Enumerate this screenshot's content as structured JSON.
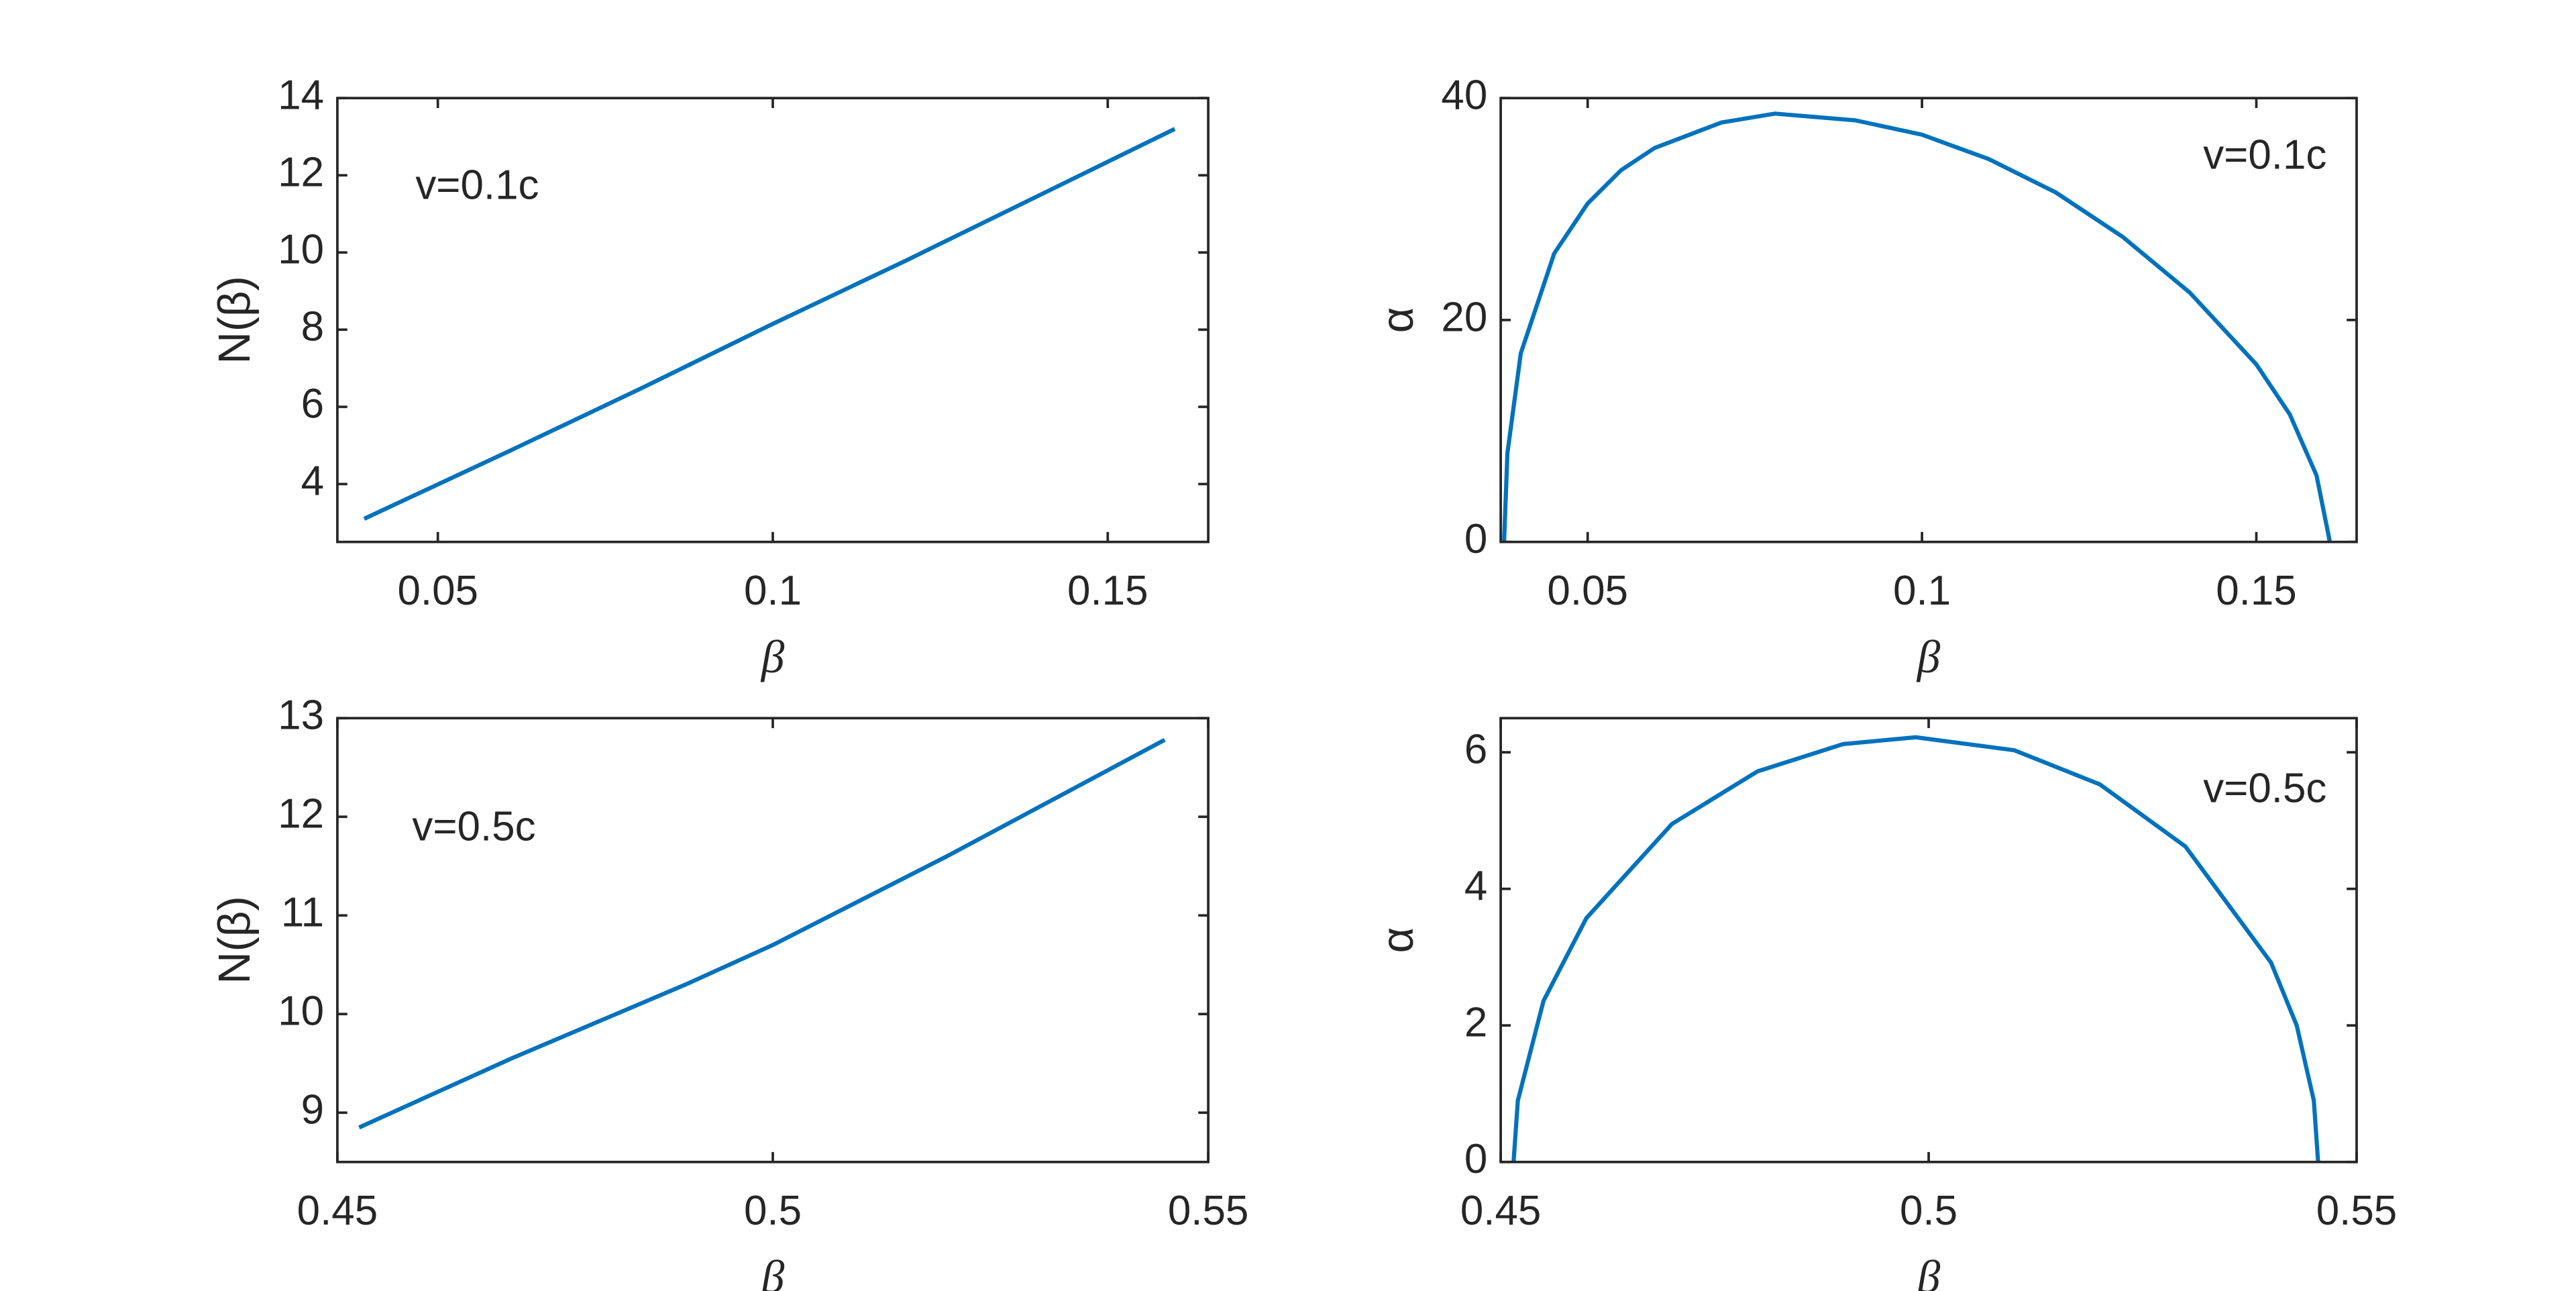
{
  "chart_data": [
    {
      "type": "line",
      "xlabel": "β",
      "ylabel": "N(β)",
      "annotation": "v=0.1c",
      "x": [
        0.039,
        0.06,
        0.08,
        0.1,
        0.12,
        0.14,
        0.16
      ],
      "series": [
        {
          "color": "#0072BD",
          "values": [
            3.1,
            4.8,
            6.45,
            8.15,
            9.8,
            11.5,
            13.2
          ]
        }
      ],
      "xlim": [
        0.035,
        0.165
      ],
      "ylim": [
        2.5,
        14
      ],
      "xticks": [
        0.05,
        0.1,
        0.15
      ],
      "yticks": [
        4,
        6,
        8,
        10,
        12,
        14
      ]
    },
    {
      "type": "line",
      "xlabel": "β",
      "ylabel": "α",
      "annotation": "v=0.1c",
      "x": [
        0.0375,
        0.038,
        0.04,
        0.045,
        0.05,
        0.055,
        0.06,
        0.07,
        0.078,
        0.09,
        0.1,
        0.11,
        0.12,
        0.13,
        0.14,
        0.15,
        0.155,
        0.159,
        0.161
      ],
      "series": [
        {
          "color": "#0072BD",
          "values": [
            0,
            8,
            17,
            26,
            30.5,
            33.5,
            35.5,
            37.8,
            38.6,
            38.0,
            36.7,
            34.5,
            31.5,
            27.5,
            22.5,
            16,
            11.5,
            6,
            0
          ]
        }
      ],
      "xlim": [
        0.037,
        0.165
      ],
      "ylim": [
        0,
        40
      ],
      "xticks": [
        0.05,
        0.1,
        0.15
      ],
      "yticks": [
        0,
        20,
        40
      ]
    },
    {
      "type": "line",
      "xlabel": "β",
      "ylabel": "N(β)",
      "annotation": "v=0.5c",
      "x": [
        0.4525,
        0.47,
        0.49,
        0.5,
        0.52,
        0.545
      ],
      "series": [
        {
          "color": "#0072BD",
          "values": [
            8.85,
            9.55,
            10.3,
            10.7,
            11.6,
            12.78
          ]
        }
      ],
      "xlim": [
        0.45,
        0.55
      ],
      "ylim": [
        8.5,
        13
      ],
      "xticks": [
        0.45,
        0.5,
        0.55
      ],
      "yticks": [
        9,
        10,
        11,
        12,
        13
      ]
    },
    {
      "type": "line",
      "xlabel": "β",
      "ylabel": "α",
      "annotation": "v=0.5c",
      "x": [
        0.4515,
        0.452,
        0.455,
        0.46,
        0.47,
        0.48,
        0.49,
        0.4985,
        0.51,
        0.52,
        0.53,
        0.54,
        0.543,
        0.545,
        0.5455
      ],
      "series": [
        {
          "color": "#0072BD",
          "values": [
            0,
            0.9,
            2.36,
            3.57,
            4.95,
            5.72,
            6.12,
            6.22,
            6.03,
            5.53,
            4.62,
            2.92,
            2.0,
            0.9,
            0
          ]
        }
      ],
      "xlim": [
        0.45,
        0.55
      ],
      "ylim": [
        0,
        6.5
      ],
      "xticks": [
        0.45,
        0.5,
        0.55
      ],
      "yticks": [
        0,
        2,
        4,
        6
      ]
    }
  ]
}
